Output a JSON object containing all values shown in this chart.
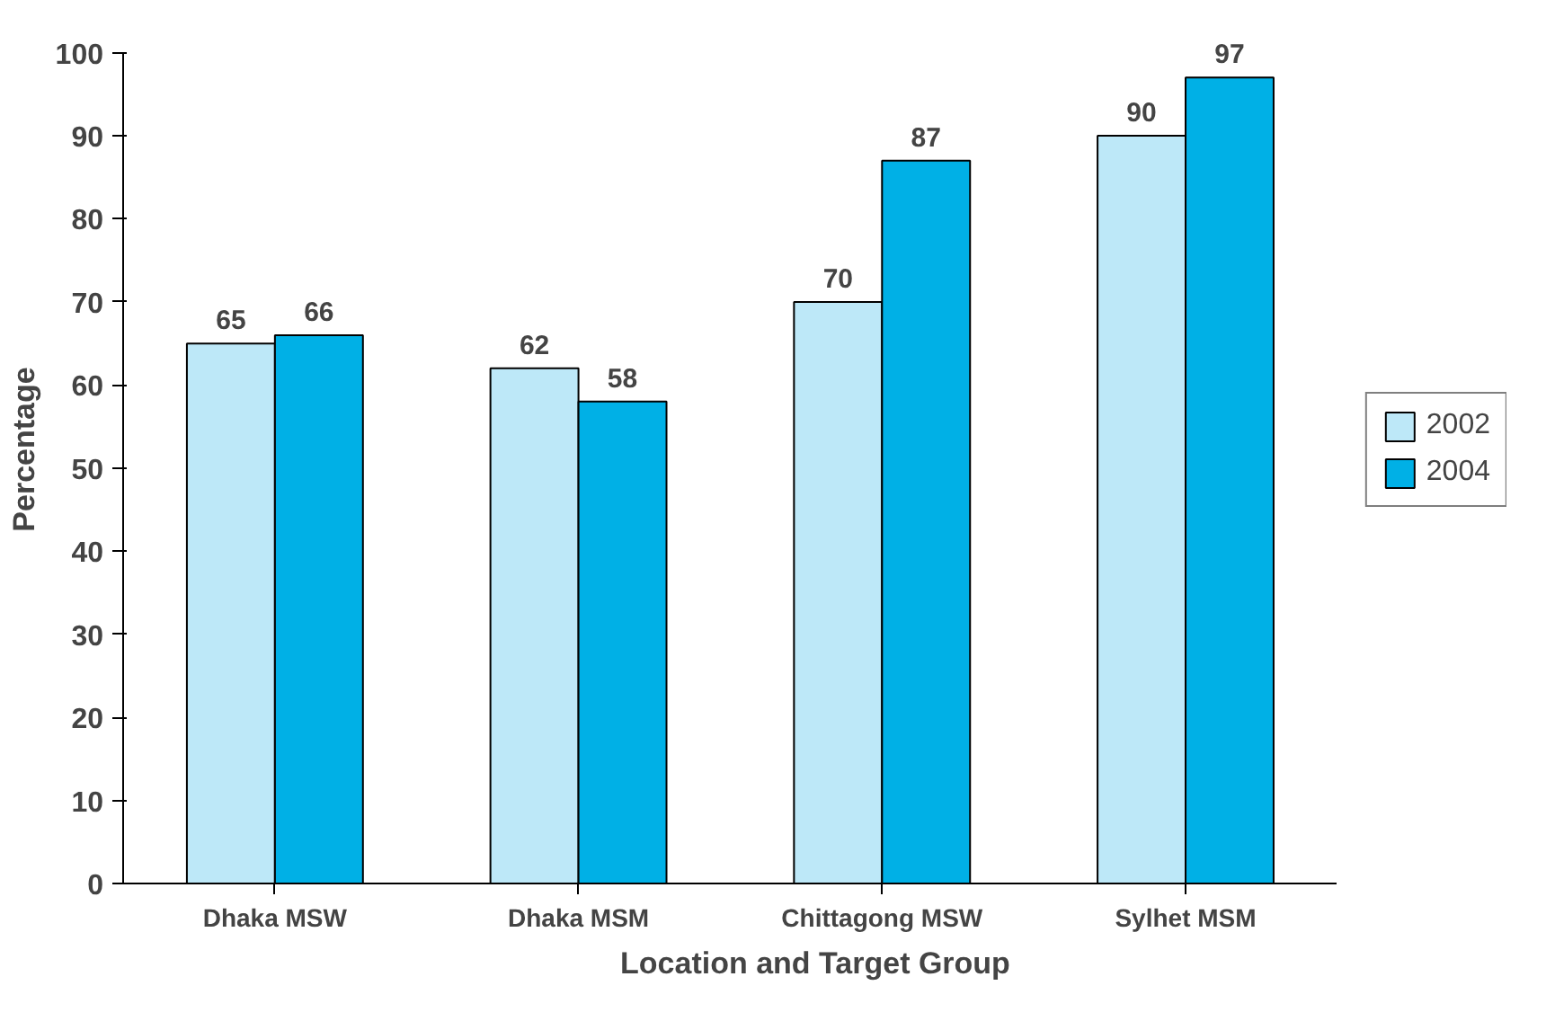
{
  "chart_data": {
    "type": "bar",
    "xlabel": "Location and Target Group",
    "ylabel": "Percentage",
    "categories": [
      "Dhaka MSW",
      "Dhaka MSM",
      "Chittagong MSW",
      "Sylhet MSM"
    ],
    "series": [
      {
        "name": "2002",
        "color": "#bde8f8",
        "values": [
          65,
          62,
          70,
          90
        ]
      },
      {
        "name": "2004",
        "color": "#00b0e6",
        "values": [
          66,
          58,
          87,
          97
        ]
      }
    ],
    "ylim": [
      0,
      100
    ],
    "yticks": [
      0,
      10,
      20,
      30,
      40,
      50,
      60,
      70,
      80,
      90,
      100
    ],
    "data_labels": true,
    "legend": "right",
    "grid": false
  }
}
